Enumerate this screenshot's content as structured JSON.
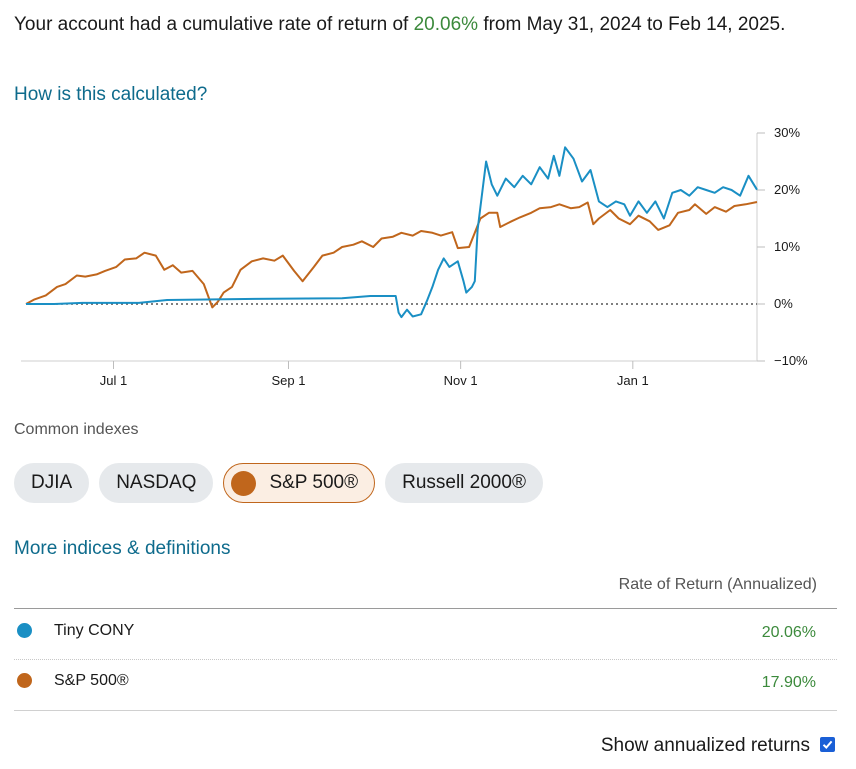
{
  "summary": {
    "prefix": "Your account had a cumulative rate of return of ",
    "value": "20.06%",
    "suffix": " from May 31, 2024 to Feb 14, 2025."
  },
  "links": {
    "how_calculated": "How is this calculated?",
    "more_indices": "More indices & definitions"
  },
  "chart_data": {
    "type": "line",
    "x_tick_labels": [
      "Jul 1",
      "Sep 1",
      "Nov 1",
      "Jan 1"
    ],
    "y_tick_labels": [
      "30%",
      "20%",
      "10%",
      "0%",
      "−10%"
    ],
    "ylim": [
      -10,
      30
    ],
    "xlim": [
      "2024-05-31",
      "2025-02-14"
    ],
    "zero_line": "dotted",
    "series": [
      {
        "name": "Tiny CONY",
        "color": "#1a8fc4",
        "points": [
          [
            "2024-05-31",
            0
          ],
          [
            "2024-06-10",
            0
          ],
          [
            "2024-06-20",
            0.2
          ],
          [
            "2024-07-10",
            0.2
          ],
          [
            "2024-07-20",
            0.7
          ],
          [
            "2024-08-20",
            0.9
          ],
          [
            "2024-09-20",
            1.0
          ],
          [
            "2024-09-30",
            1.4
          ],
          [
            "2024-10-09",
            1.4
          ],
          [
            "2024-10-10",
            -1.5
          ],
          [
            "2024-10-11",
            -2.3
          ],
          [
            "2024-10-13",
            -1.0
          ],
          [
            "2024-10-15",
            -2.2
          ],
          [
            "2024-10-18",
            -1.8
          ],
          [
            "2024-10-20",
            0.5
          ],
          [
            "2024-10-22",
            3.0
          ],
          [
            "2024-10-24",
            6.0
          ],
          [
            "2024-10-26",
            8.0
          ],
          [
            "2024-10-28",
            6.5
          ],
          [
            "2024-10-31",
            7.5
          ],
          [
            "2024-11-02",
            4.0
          ],
          [
            "2024-11-03",
            2.0
          ],
          [
            "2024-11-05",
            3.0
          ],
          [
            "2024-11-06",
            4.0
          ],
          [
            "2024-11-07",
            13.0
          ],
          [
            "2024-11-08",
            17.0
          ],
          [
            "2024-11-10",
            25.0
          ],
          [
            "2024-11-12",
            21.0
          ],
          [
            "2024-11-14",
            19.0
          ],
          [
            "2024-11-17",
            22.0
          ],
          [
            "2024-11-20",
            20.5
          ],
          [
            "2024-11-23",
            22.5
          ],
          [
            "2024-11-26",
            21.0
          ],
          [
            "2024-11-29",
            24.0
          ],
          [
            "2024-12-02",
            22.0
          ],
          [
            "2024-12-04",
            26.0
          ],
          [
            "2024-12-06",
            22.5
          ],
          [
            "2024-12-08",
            27.5
          ],
          [
            "2024-12-11",
            25.5
          ],
          [
            "2024-12-14",
            21.5
          ],
          [
            "2024-12-17",
            23.5
          ],
          [
            "2024-12-20",
            18.0
          ],
          [
            "2024-12-23",
            17.0
          ],
          [
            "2024-12-26",
            18.0
          ],
          [
            "2024-12-29",
            17.5
          ],
          [
            "2024-12-31",
            15.5
          ],
          [
            "2025-01-03",
            18.0
          ],
          [
            "2025-01-06",
            16.0
          ],
          [
            "2025-01-09",
            18.0
          ],
          [
            "2025-01-12",
            15.0
          ],
          [
            "2025-01-15",
            19.5
          ],
          [
            "2025-01-18",
            20.0
          ],
          [
            "2025-01-21",
            19.0
          ],
          [
            "2025-01-24",
            20.5
          ],
          [
            "2025-01-27",
            20.0
          ],
          [
            "2025-01-30",
            19.5
          ],
          [
            "2025-02-02",
            20.5
          ],
          [
            "2025-02-05",
            20.0
          ],
          [
            "2025-02-08",
            19.0
          ],
          [
            "2025-02-11",
            22.5
          ],
          [
            "2025-02-14",
            20.06
          ]
        ]
      },
      {
        "name": "S&P 500®",
        "color": "#c0661c",
        "points": [
          [
            "2024-05-31",
            0
          ],
          [
            "2024-06-03",
            0.8
          ],
          [
            "2024-06-07",
            1.5
          ],
          [
            "2024-06-11",
            3.0
          ],
          [
            "2024-06-14",
            3.5
          ],
          [
            "2024-06-18",
            5.0
          ],
          [
            "2024-06-21",
            4.8
          ],
          [
            "2024-06-25",
            5.2
          ],
          [
            "2024-06-28",
            5.8
          ],
          [
            "2024-07-02",
            6.5
          ],
          [
            "2024-07-05",
            7.8
          ],
          [
            "2024-07-09",
            8.0
          ],
          [
            "2024-07-12",
            9.0
          ],
          [
            "2024-07-16",
            8.5
          ],
          [
            "2024-07-19",
            6.0
          ],
          [
            "2024-07-22",
            6.8
          ],
          [
            "2024-07-25",
            5.5
          ],
          [
            "2024-07-29",
            5.8
          ],
          [
            "2024-08-02",
            3.5
          ],
          [
            "2024-08-05",
            -0.6
          ],
          [
            "2024-08-07",
            0.4
          ],
          [
            "2024-08-09",
            2.0
          ],
          [
            "2024-08-12",
            3.0
          ],
          [
            "2024-08-15",
            6.0
          ],
          [
            "2024-08-19",
            7.5
          ],
          [
            "2024-08-23",
            8.0
          ],
          [
            "2024-08-27",
            7.6
          ],
          [
            "2024-08-30",
            8.5
          ],
          [
            "2024-09-03",
            5.8
          ],
          [
            "2024-09-06",
            4.0
          ],
          [
            "2024-09-10",
            6.5
          ],
          [
            "2024-09-13",
            8.5
          ],
          [
            "2024-09-17",
            9.0
          ],
          [
            "2024-09-20",
            10.0
          ],
          [
            "2024-09-24",
            10.4
          ],
          [
            "2024-09-27",
            11.0
          ],
          [
            "2024-10-01",
            10.0
          ],
          [
            "2024-10-04",
            11.5
          ],
          [
            "2024-10-08",
            11.8
          ],
          [
            "2024-10-11",
            12.5
          ],
          [
            "2024-10-15",
            12.0
          ],
          [
            "2024-10-18",
            12.8
          ],
          [
            "2024-10-22",
            12.5
          ],
          [
            "2024-10-25",
            12.0
          ],
          [
            "2024-10-29",
            12.6
          ],
          [
            "2024-10-31",
            9.8
          ],
          [
            "2024-11-04",
            10.0
          ],
          [
            "2024-11-06",
            12.5
          ],
          [
            "2024-11-08",
            15.0
          ],
          [
            "2024-11-11",
            16.0
          ],
          [
            "2024-11-14",
            16.0
          ],
          [
            "2024-11-15",
            13.5
          ],
          [
            "2024-11-19",
            14.5
          ],
          [
            "2024-11-22",
            15.2
          ],
          [
            "2024-11-26",
            16.0
          ],
          [
            "2024-11-29",
            16.8
          ],
          [
            "2024-12-03",
            17.0
          ],
          [
            "2024-12-06",
            17.5
          ],
          [
            "2024-12-10",
            16.8
          ],
          [
            "2024-12-13",
            17.0
          ],
          [
            "2024-12-16",
            17.8
          ],
          [
            "2024-12-18",
            14.0
          ],
          [
            "2024-12-20",
            15.0
          ],
          [
            "2024-12-24",
            16.5
          ],
          [
            "2024-12-27",
            15.0
          ],
          [
            "2024-12-31",
            14.0
          ],
          [
            "2025-01-03",
            15.5
          ],
          [
            "2025-01-07",
            14.5
          ],
          [
            "2025-01-10",
            13.0
          ],
          [
            "2025-01-14",
            13.8
          ],
          [
            "2025-01-17",
            16.0
          ],
          [
            "2025-01-21",
            16.5
          ],
          [
            "2025-01-23",
            17.5
          ],
          [
            "2025-01-27",
            15.8
          ],
          [
            "2025-01-30",
            17.0
          ],
          [
            "2025-02-03",
            16.2
          ],
          [
            "2025-02-06",
            17.2
          ],
          [
            "2025-02-10",
            17.5
          ],
          [
            "2025-02-14",
            17.9
          ]
        ]
      }
    ]
  },
  "indexes": {
    "label": "Common indexes",
    "chips": [
      {
        "label": "DJIA",
        "active": false
      },
      {
        "label": "NASDAQ",
        "active": false
      },
      {
        "label": "S&P 500®",
        "active": true,
        "color": "#c0661c"
      },
      {
        "label": "Russell 2000®",
        "active": false
      }
    ]
  },
  "table": {
    "header": "Rate of Return (Annualized)",
    "rows": [
      {
        "name": "Tiny CONY",
        "value": "20.06%",
        "color": "#1a8fc4"
      },
      {
        "name": "S&P 500®",
        "value": "17.90%",
        "color": "#c0661c"
      }
    ]
  },
  "annualized": {
    "label": "Show annualized returns",
    "checked": true
  }
}
